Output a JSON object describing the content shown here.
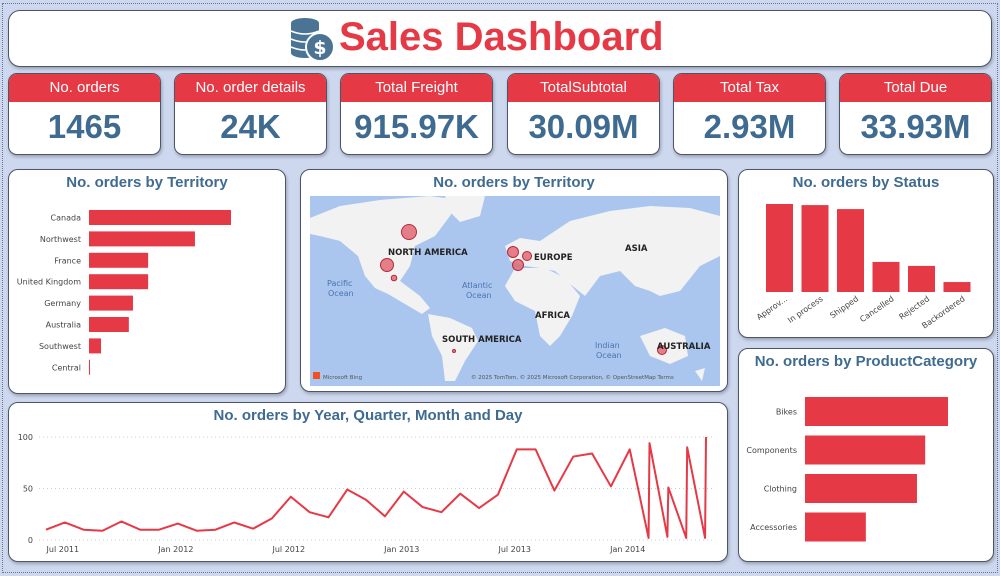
{
  "header": {
    "title": "Sales Dashboard",
    "icon": "coins-dollar-icon"
  },
  "colors": {
    "accent": "#e63946",
    "title": "#3f6b90",
    "background": "#cdd8ef",
    "map_water": "#aac6ee",
    "map_land": "#f2f2f2"
  },
  "kpis": [
    {
      "label": "No. orders",
      "value": "1465"
    },
    {
      "label": "No. order details",
      "value": "24K"
    },
    {
      "label": "Total Freight",
      "value": "915.97K"
    },
    {
      "label": "TotalSubtotal",
      "value": "30.09M"
    },
    {
      "label": "Total Tax",
      "value": "2.93M"
    },
    {
      "label": "Total Due",
      "value": "33.93M"
    }
  ],
  "map": {
    "title": "No. orders by Territory",
    "labels": {
      "north_america": "NORTH AMERICA",
      "south_america": "SOUTH AMERICA",
      "europe": "EUROPE",
      "africa": "AFRICA",
      "asia": "ASIA",
      "australia": "AUSTRALIA",
      "pacific": "Pacific",
      "pacific2": "Ocean",
      "atlantic": "Atlantic",
      "atlantic2": "Ocean",
      "indian": "Indian",
      "indian2": "Ocean"
    },
    "brand": "Microsoft Bing",
    "attribution": "© 2025 TomTom, © 2025 Microsoft Corporation, © OpenStreetMap  Terms"
  },
  "chart_data": [
    {
      "type": "bar",
      "orientation": "horizontal",
      "title": "No. orders by Territory",
      "categories": [
        "Canada",
        "Northwest",
        "France",
        "United Kingdom",
        "Germany",
        "Australia",
        "Southwest",
        "Central"
      ],
      "values": [
        449,
        335,
        187,
        187,
        139,
        126,
        38,
        3
      ]
    },
    {
      "type": "bar",
      "orientation": "vertical",
      "title": "No. orders by Status",
      "categories": [
        "Approv...",
        "In process",
        "Shipped",
        "Cancelled",
        "Rejected",
        "Backordered"
      ],
      "values": [
        398,
        393,
        375,
        136,
        118,
        45
      ]
    },
    {
      "type": "bar",
      "orientation": "horizontal",
      "title": "No. orders by ProductCategory",
      "categories": [
        "Bikes",
        "Components",
        "Clothing",
        "Accessories"
      ],
      "values": [
        470,
        395,
        368,
        200
      ]
    },
    {
      "type": "line",
      "title": "No. orders by Year, Quarter, Month and Day",
      "ylim": [
        0,
        100
      ],
      "yticks": [
        0,
        50,
        100
      ],
      "grid": true,
      "xticks": [
        {
          "x": 1,
          "label": "Jul 2011"
        },
        {
          "x": 7,
          "label": "Jan 2012"
        },
        {
          "x": 13,
          "label": "Jul 2012"
        },
        {
          "x": 19,
          "label": "Jan 2013"
        },
        {
          "x": 25,
          "label": "Jul 2013"
        },
        {
          "x": 31,
          "label": "Jan 2014"
        }
      ],
      "points": [
        [
          0,
          10
        ],
        [
          1,
          17
        ],
        [
          2,
          10
        ],
        [
          3,
          9
        ],
        [
          4,
          18
        ],
        [
          5,
          10
        ],
        [
          6,
          10
        ],
        [
          7,
          16
        ],
        [
          8,
          9
        ],
        [
          9,
          10
        ],
        [
          10,
          17
        ],
        [
          11,
          11
        ],
        [
          12,
          21
        ],
        [
          13,
          42
        ],
        [
          14,
          27
        ],
        [
          15,
          22
        ],
        [
          16,
          49
        ],
        [
          17,
          39
        ],
        [
          18,
          23
        ],
        [
          19,
          47
        ],
        [
          20,
          32
        ],
        [
          21,
          27
        ],
        [
          22,
          45
        ],
        [
          23,
          31
        ],
        [
          24,
          44
        ],
        [
          25,
          88
        ],
        [
          26,
          88
        ],
        [
          27,
          48
        ],
        [
          28,
          81
        ],
        [
          29,
          84
        ],
        [
          30,
          52
        ],
        [
          31,
          88
        ],
        [
          32,
          2
        ],
        [
          32.05,
          94
        ],
        [
          33,
          3
        ],
        [
          33.05,
          51
        ],
        [
          34,
          2
        ],
        [
          34.05,
          90
        ],
        [
          35,
          2
        ],
        [
          35.05,
          100
        ]
      ]
    }
  ]
}
